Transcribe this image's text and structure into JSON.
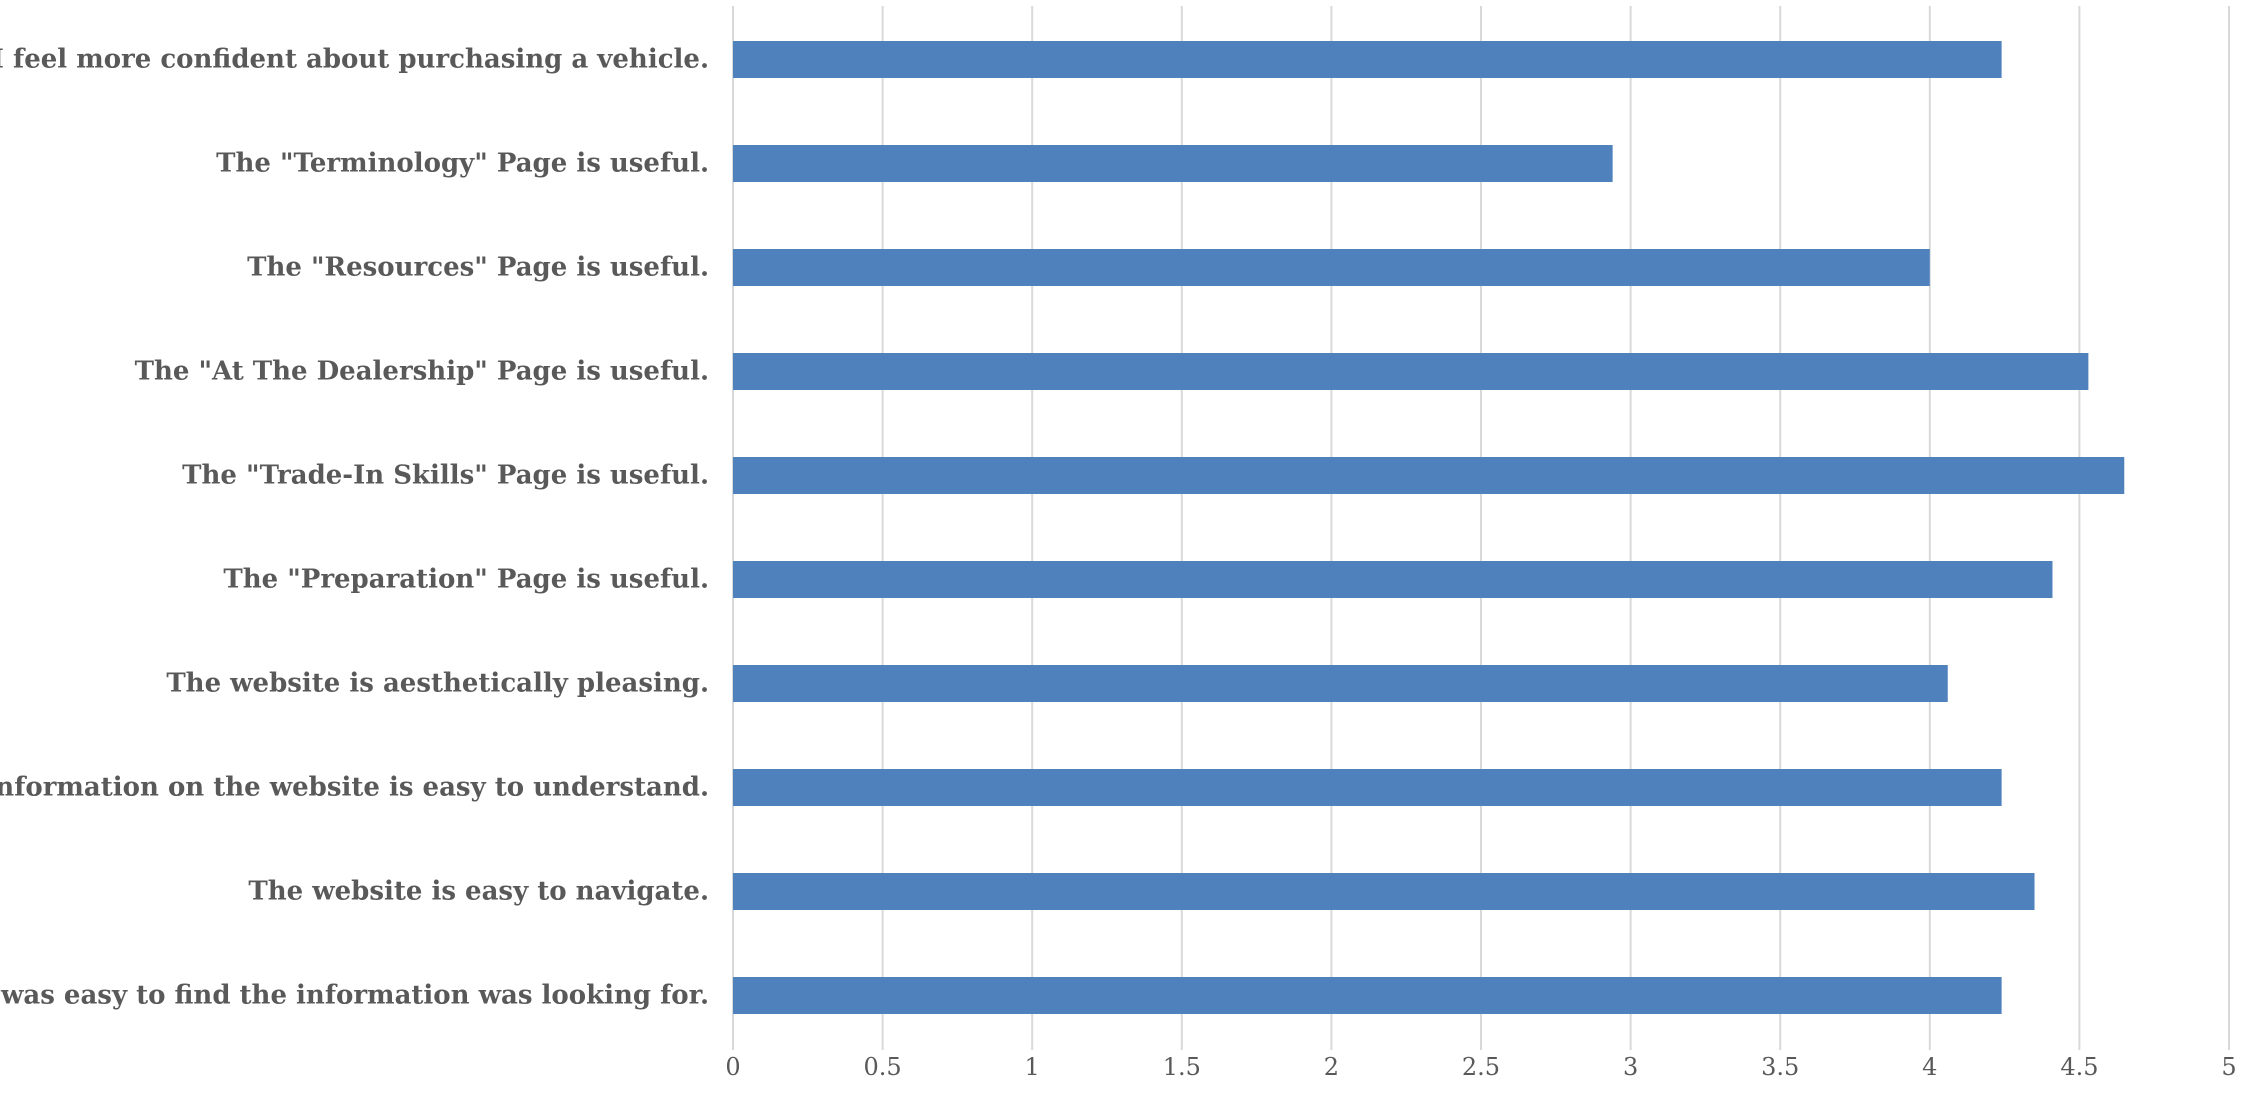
{
  "chart_data": {
    "type": "bar",
    "orientation": "horizontal",
    "categories": [
      "I feel more confident about purchasing a vehicle.",
      "The \"Terminology\" Page is useful.",
      "The \"Resources\" Page is useful.",
      "The \"At The Dealership\" Page is useful.",
      "The \"Trade-In Skills\" Page is useful.",
      "The \"Preparation\" Page is useful.",
      "The website is aesthetically pleasing.",
      "The information on the website is easy to understand.",
      "The website is easy to navigate.",
      "It was easy to find the information was looking for."
    ],
    "values": [
      4.24,
      2.94,
      4.0,
      4.53,
      4.65,
      4.41,
      4.06,
      4.24,
      4.35,
      4.24
    ],
    "xlim": [
      0,
      5
    ],
    "xticks": [
      "0",
      "0.5",
      "1",
      "1.5",
      "2",
      "2.5",
      "3",
      "3.5",
      "4",
      "4.5",
      "5"
    ],
    "grid": "vertical",
    "bar_color": "#4f81bd",
    "title": "",
    "xlabel": "",
    "ylabel": ""
  }
}
